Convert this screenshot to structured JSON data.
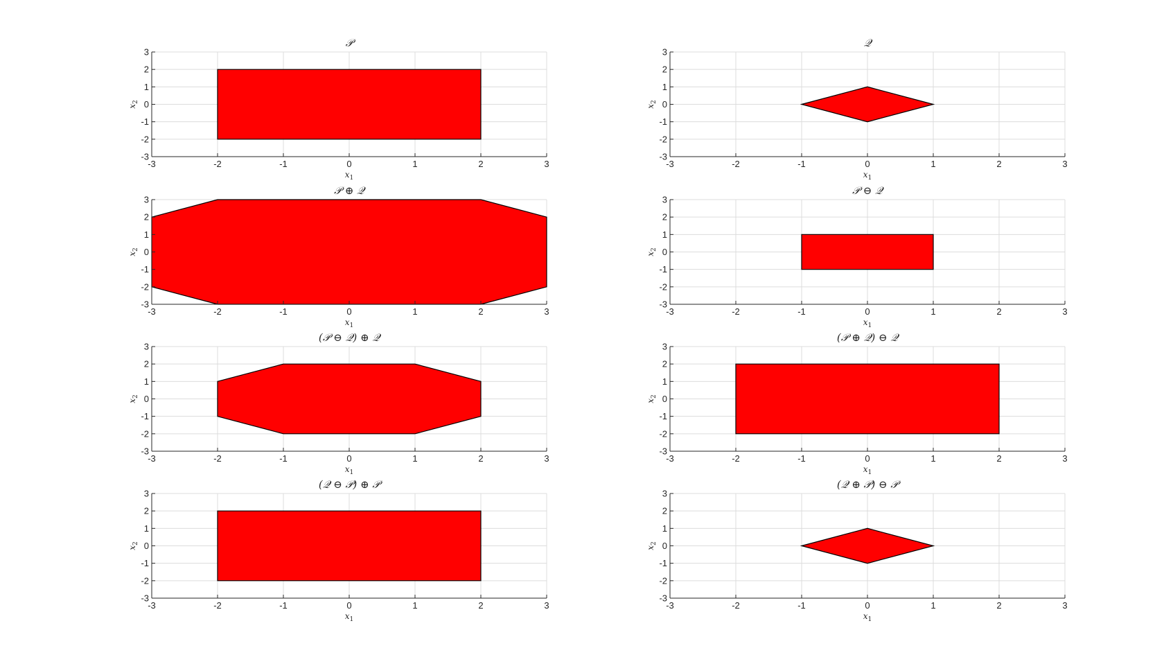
{
  "figure": {
    "background": "#ffffff"
  },
  "chart_data": [
    {
      "type": "area",
      "title": "𝒫",
      "xlabel": "x",
      "xlabel_sub": "1",
      "ylabel": "x",
      "ylabel_sub": "2",
      "xlim": [
        -3,
        3
      ],
      "ylim": [
        -3,
        3
      ],
      "xticks": [
        -3,
        -2,
        -1,
        0,
        1,
        2,
        3
      ],
      "yticks": [
        -3,
        -2,
        -1,
        0,
        1,
        2,
        3
      ],
      "grid": true,
      "fill": "#ff0000",
      "polygon": [
        [
          -2,
          -2
        ],
        [
          2,
          -2
        ],
        [
          2,
          2
        ],
        [
          -2,
          2
        ]
      ]
    },
    {
      "type": "area",
      "title": "𝒬",
      "xlabel": "x",
      "xlabel_sub": "1",
      "ylabel": "x",
      "ylabel_sub": "2",
      "xlim": [
        -3,
        3
      ],
      "ylim": [
        -3,
        3
      ],
      "xticks": [
        -3,
        -2,
        -1,
        0,
        1,
        2,
        3
      ],
      "yticks": [
        -3,
        -2,
        -1,
        0,
        1,
        2,
        3
      ],
      "grid": true,
      "fill": "#ff0000",
      "polygon": [
        [
          -1,
          0
        ],
        [
          0,
          1
        ],
        [
          1,
          0
        ],
        [
          0,
          -1
        ]
      ]
    },
    {
      "type": "area",
      "title": "𝒫 ⊕ 𝒬",
      "xlabel": "x",
      "xlabel_sub": "1",
      "ylabel": "x",
      "ylabel_sub": "2",
      "xlim": [
        -3,
        3
      ],
      "ylim": [
        -3,
        3
      ],
      "xticks": [
        -3,
        -2,
        -1,
        0,
        1,
        2,
        3
      ],
      "yticks": [
        -3,
        -2,
        -1,
        0,
        1,
        2,
        3
      ],
      "grid": true,
      "fill": "#ff0000",
      "polygon": [
        [
          -3,
          -2
        ],
        [
          -2,
          -3
        ],
        [
          2,
          -3
        ],
        [
          3,
          -2
        ],
        [
          3,
          2
        ],
        [
          2,
          3
        ],
        [
          -2,
          3
        ],
        [
          -3,
          2
        ]
      ]
    },
    {
      "type": "area",
      "title": "𝒫 ⊖ 𝒬",
      "xlabel": "x",
      "xlabel_sub": "1",
      "ylabel": "x",
      "ylabel_sub": "2",
      "xlim": [
        -3,
        3
      ],
      "ylim": [
        -3,
        3
      ],
      "xticks": [
        -3,
        -2,
        -1,
        0,
        1,
        2,
        3
      ],
      "yticks": [
        -3,
        -2,
        -1,
        0,
        1,
        2,
        3
      ],
      "grid": true,
      "fill": "#ff0000",
      "polygon": [
        [
          -1,
          -1
        ],
        [
          1,
          -1
        ],
        [
          1,
          1
        ],
        [
          -1,
          1
        ]
      ]
    },
    {
      "type": "area",
      "title": "(𝒫 ⊖ 𝒬) ⊕ 𝒬",
      "xlabel": "x",
      "xlabel_sub": "1",
      "ylabel": "x",
      "ylabel_sub": "2",
      "xlim": [
        -3,
        3
      ],
      "ylim": [
        -3,
        3
      ],
      "xticks": [
        -3,
        -2,
        -1,
        0,
        1,
        2,
        3
      ],
      "yticks": [
        -3,
        -2,
        -1,
        0,
        1,
        2,
        3
      ],
      "grid": true,
      "fill": "#ff0000",
      "polygon": [
        [
          -2,
          -1
        ],
        [
          -1,
          -2
        ],
        [
          1,
          -2
        ],
        [
          2,
          -1
        ],
        [
          2,
          1
        ],
        [
          1,
          2
        ],
        [
          -1,
          2
        ],
        [
          -2,
          1
        ]
      ]
    },
    {
      "type": "area",
      "title": "(𝒫 ⊕ 𝒬) ⊖ 𝒬",
      "xlabel": "x",
      "xlabel_sub": "1",
      "ylabel": "x",
      "ylabel_sub": "2",
      "xlim": [
        -3,
        3
      ],
      "ylim": [
        -3,
        3
      ],
      "xticks": [
        -3,
        -2,
        -1,
        0,
        1,
        2,
        3
      ],
      "yticks": [
        -3,
        -2,
        -1,
        0,
        1,
        2,
        3
      ],
      "grid": true,
      "fill": "#ff0000",
      "polygon": [
        [
          -2,
          -2
        ],
        [
          2,
          -2
        ],
        [
          2,
          2
        ],
        [
          -2,
          2
        ]
      ]
    },
    {
      "type": "area",
      "title": "(𝒬 ⊖ 𝒫) ⊕ 𝒫",
      "xlabel": "x",
      "xlabel_sub": "1",
      "ylabel": "x",
      "ylabel_sub": "2",
      "xlim": [
        -3,
        3
      ],
      "ylim": [
        -3,
        3
      ],
      "xticks": [
        -3,
        -2,
        -1,
        0,
        1,
        2,
        3
      ],
      "yticks": [
        -3,
        -2,
        -1,
        0,
        1,
        2,
        3
      ],
      "grid": true,
      "fill": "#ff0000",
      "polygon": [
        [
          -2,
          -2
        ],
        [
          2,
          -2
        ],
        [
          2,
          2
        ],
        [
          -2,
          2
        ]
      ]
    },
    {
      "type": "area",
      "title": "(𝒬 ⊕ 𝒫) ⊖ 𝒫",
      "xlabel": "x",
      "xlabel_sub": "1",
      "ylabel": "x",
      "ylabel_sub": "2",
      "xlim": [
        -3,
        3
      ],
      "ylim": [
        -3,
        3
      ],
      "xticks": [
        -3,
        -2,
        -1,
        0,
        1,
        2,
        3
      ],
      "yticks": [
        -3,
        -2,
        -1,
        0,
        1,
        2,
        3
      ],
      "grid": true,
      "fill": "#ff0000",
      "polygon": [
        [
          -1,
          0
        ],
        [
          0,
          1
        ],
        [
          1,
          0
        ],
        [
          0,
          -1
        ]
      ]
    }
  ]
}
